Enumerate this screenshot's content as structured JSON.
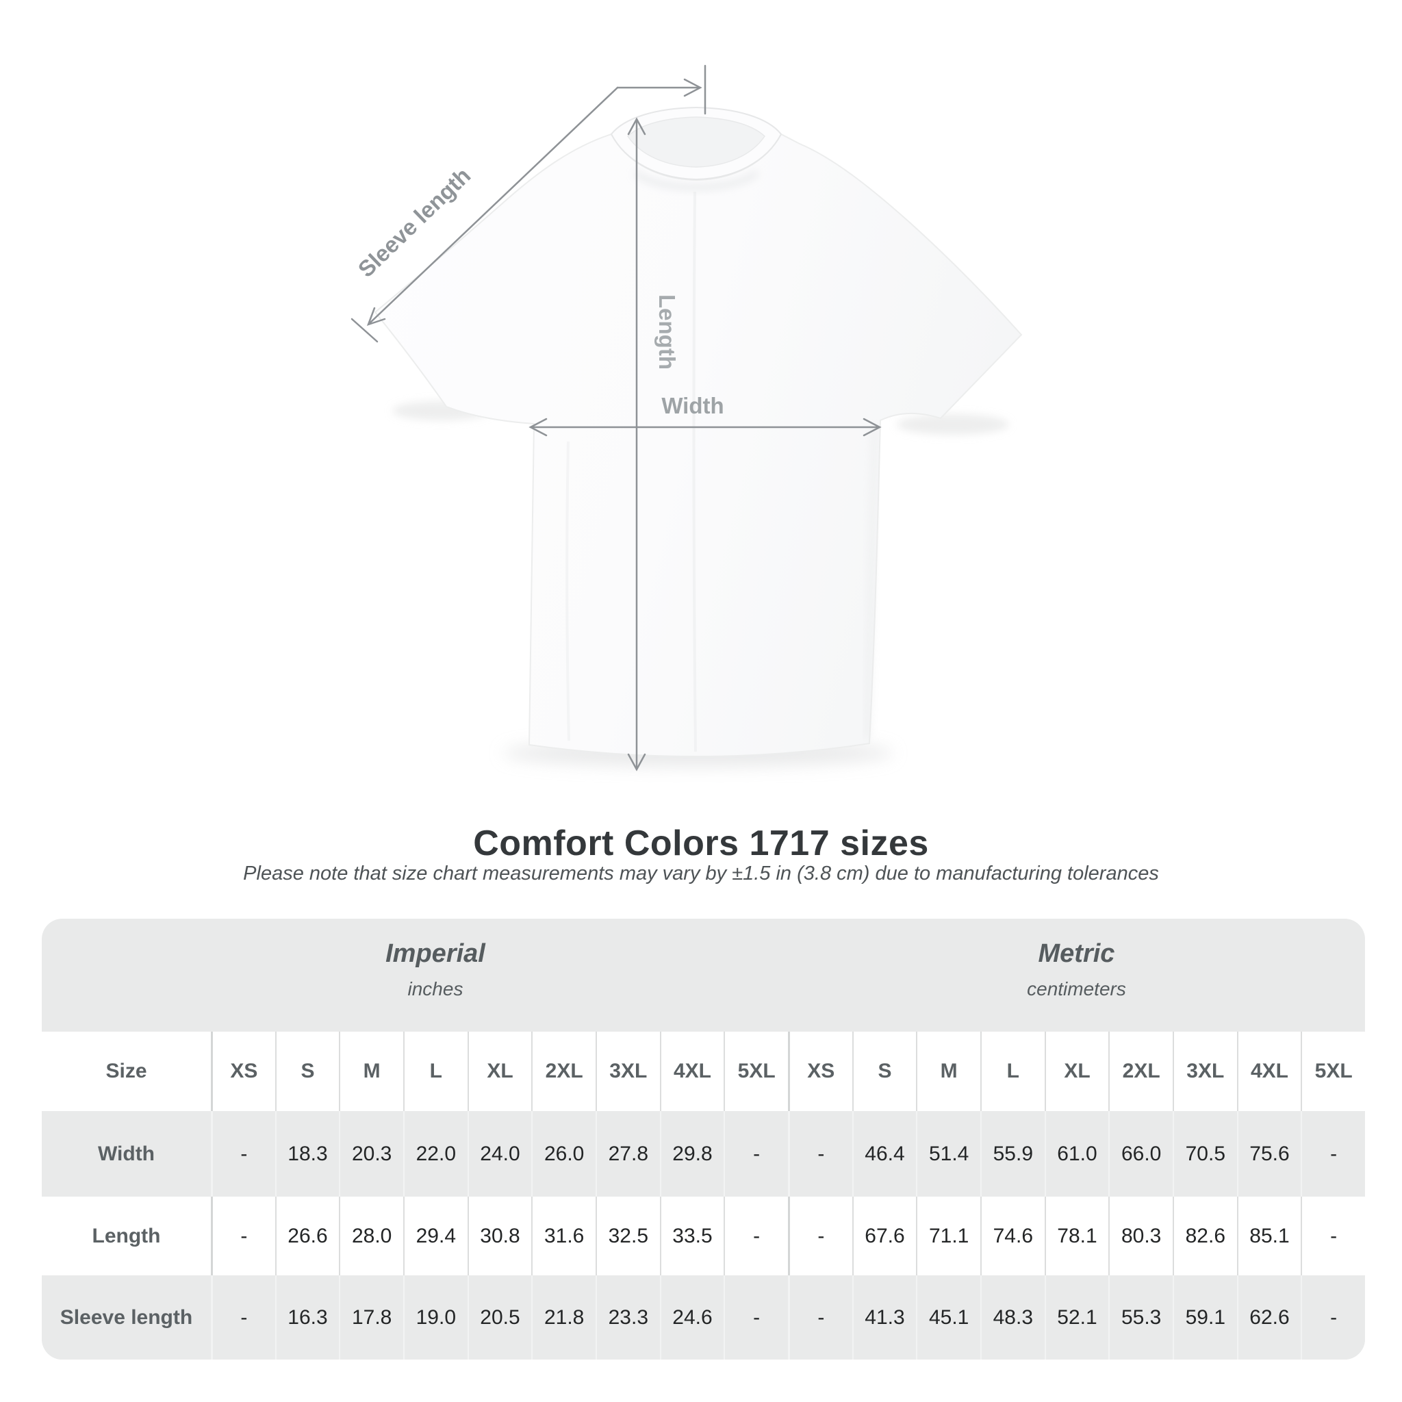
{
  "page": {
    "title": "Comfort Colors 1717 sizes",
    "note": "Please note that size chart measurements may vary by ±1.5 in (3.8 cm) due to manufacturing tolerances"
  },
  "figure": {
    "labels": {
      "sleeve_length": "Sleeve length",
      "length": "Length",
      "width": "Width"
    },
    "arrow_color": "#8e9296",
    "label_color": "#9aa0a3"
  },
  "table": {
    "background": "#e9eaea",
    "imperial": {
      "title": "Imperial",
      "unit": "inches"
    },
    "metric": {
      "title": "Metric",
      "unit": "centimeters"
    },
    "size_label": "Size",
    "sizes": [
      "XS",
      "S",
      "M",
      "L",
      "XL",
      "2XL",
      "3XL",
      "4XL",
      "5XL"
    ],
    "rows": [
      {
        "label": "Width",
        "imperial": [
          "-",
          "18.3",
          "20.3",
          "22.0",
          "24.0",
          "26.0",
          "27.8",
          "29.8",
          "-"
        ],
        "metric": [
          "-",
          "46.4",
          "51.4",
          "55.9",
          "61.0",
          "66.0",
          "70.5",
          "75.6",
          "-"
        ]
      },
      {
        "label": "Length",
        "imperial": [
          "-",
          "26.6",
          "28.0",
          "29.4",
          "30.8",
          "31.6",
          "32.5",
          "33.5",
          "-"
        ],
        "metric": [
          "-",
          "67.6",
          "71.1",
          "74.6",
          "78.1",
          "80.3",
          "82.6",
          "85.1",
          "-"
        ]
      },
      {
        "label": "Sleeve length",
        "imperial": [
          "-",
          "16.3",
          "17.8",
          "19.0",
          "20.5",
          "21.8",
          "23.3",
          "24.6",
          "-"
        ],
        "metric": [
          "-",
          "41.3",
          "45.1",
          "48.3",
          "52.1",
          "55.3",
          "59.1",
          "62.6",
          "-"
        ]
      }
    ]
  }
}
